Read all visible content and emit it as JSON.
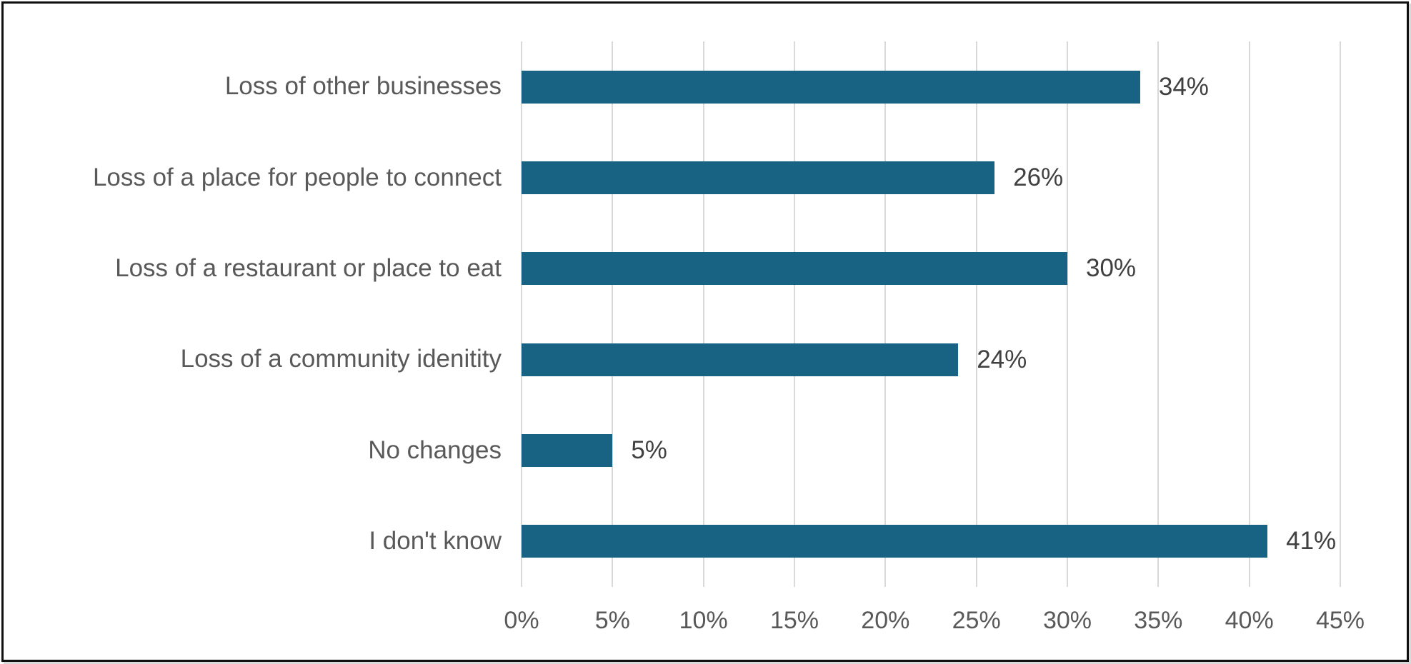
{
  "chart_data": {
    "type": "bar",
    "orientation": "horizontal",
    "categories": [
      "Loss of other businesses",
      "Loss of a place for people to connect",
      "Loss of a restaurant or place to eat",
      "Loss of a community idenitity",
      "No changes",
      "I don't know"
    ],
    "values": [
      34,
      26,
      30,
      24,
      5,
      41
    ],
    "value_labels": [
      "34%",
      "26%",
      "30%",
      "24%",
      "5%",
      "41%"
    ],
    "x_ticks": [
      "0%",
      "5%",
      "10%",
      "15%",
      "20%",
      "25%",
      "30%",
      "35%",
      "40%",
      "45%"
    ],
    "x_tick_values": [
      0,
      5,
      10,
      15,
      20,
      25,
      30,
      35,
      40,
      45
    ],
    "xlim": [
      0,
      45
    ],
    "grid": "vertical-only",
    "legend": "none",
    "colors": {
      "bar": "#186284",
      "category_label": "#595959",
      "value_label": "#404040",
      "tick_label": "#595959",
      "gridline": "#d9d9d9",
      "background": "#ffffff",
      "frame_border": "#101010"
    }
  }
}
